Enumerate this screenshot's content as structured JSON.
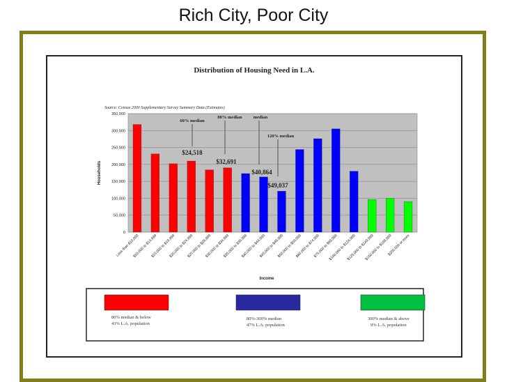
{
  "slide": {
    "title": "Rich City, Poor City"
  },
  "chart_data": {
    "type": "bar",
    "title": "Distribution of Housing Need in L.A.",
    "source": "Source: Census 2000 Supplementary Survey Summary Data (Estimates)",
    "xlabel": "Income",
    "ylabel": "Households",
    "ylim": [
      0,
      350000
    ],
    "yticks": [
      "0",
      "50,000",
      "100,000",
      "150,000",
      "200,000",
      "250,000",
      "300,000",
      "350,000"
    ],
    "grid": true,
    "categories": [
      "Less than $10,000",
      "$10,000 to $14,999",
      "$15,000 to $19,999",
      "$20,000 to $24,999",
      "$25,000 to $29,999",
      "$30,000 to $34,999",
      "$35,000 to $39,999",
      "$40,000 to $44,999",
      "$45,000 to $49,999",
      "$50,000 to $59,999",
      "$60,000 to $74,999",
      "$75,000 to $99,999",
      "$100,000 to $124,999",
      "$125,000 to $149,999",
      "$150,000 to $199,999",
      "$200,000 or more"
    ],
    "values": [
      318000,
      231000,
      202000,
      210000,
      184000,
      190000,
      173000,
      163000,
      121000,
      244000,
      276000,
      305000,
      180000,
      96000,
      100000,
      90000
    ],
    "bar_colors": [
      "#ff0000",
      "#ff0000",
      "#ff0000",
      "#ff0000",
      "#ff0000",
      "#ff0000",
      "#0000ff",
      "#0000ff",
      "#0000ff",
      "#0000ff",
      "#0000ff",
      "#0000ff",
      "#0000ff",
      "#00ff00",
      "#00ff00",
      "#00ff00"
    ],
    "annotations": [
      {
        "label": "60% median",
        "value": "$24,518"
      },
      {
        "label": "80% median",
        "value": "$32,691"
      },
      {
        "label": "median",
        "value": "$40,864"
      },
      {
        "label": "120% median",
        "value": "$49,037"
      }
    ],
    "legend": [
      {
        "color": "#ff0000",
        "line1": "80% median & below",
        "line2": "43% L.A. population"
      },
      {
        "color": "#2a2aa0",
        "line1": "80%-300% median",
        "line2": "47% L.A. population"
      },
      {
        "color": "#00c040",
        "line1": "300% median & above",
        "line2": "9% L.A. population"
      }
    ]
  }
}
